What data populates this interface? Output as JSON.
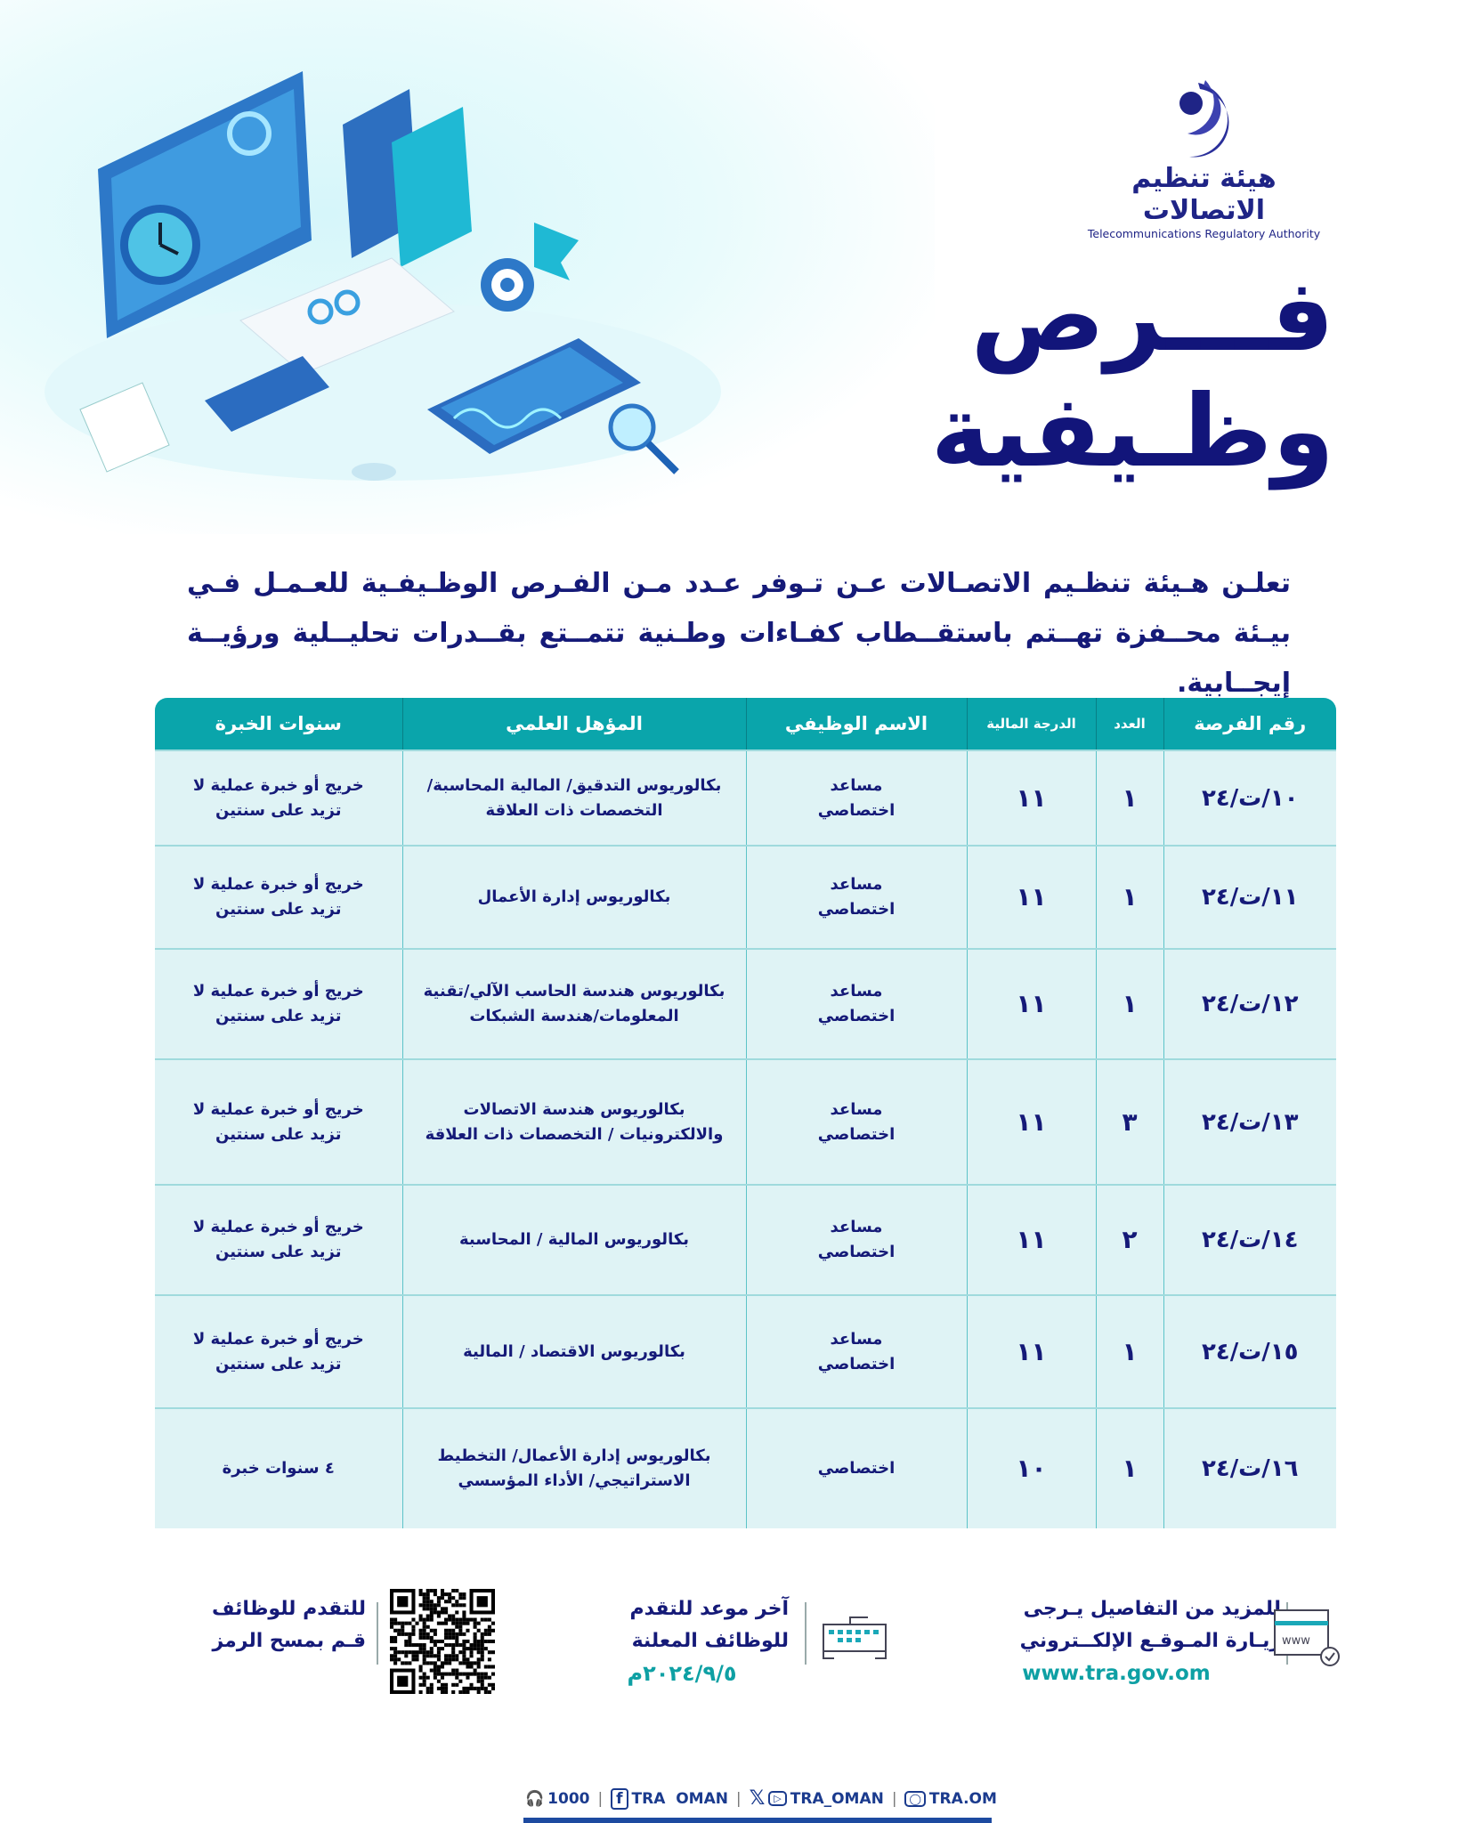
{
  "logo": {
    "arabic": "هيئة تنظيم الاتصالات",
    "english": "Telecommunications Regulatory Authority"
  },
  "title": {
    "line1": "فـــرص",
    "line2": "وظـيفية"
  },
  "intro": "تعلـن هـيئة تنظـيم الاتصـالات عـن تـوفر عـدد مـن الفـرص الوظـيفـية للعـمـل فـي بيـئة محــفزة تهــتم باستقــطاب كفـاءات وطـنية تتمــتع بقــدرات تحليــلية ورؤيــة إيجــابية.",
  "table": {
    "headers": [
      "رقم الفرصة",
      "العدد",
      "الدرجة المالية",
      "الاسم الوظيفي",
      "المؤهل العلمي",
      "سنوات الخبرة"
    ],
    "rows": [
      {
        "id": "١٠/ت/٢٤",
        "count": "١",
        "grade": "١١",
        "title": "مساعد اختصاصي",
        "qualification": "بكالوريوس التدقيق/ المالية المحاسبة/ التخصصات ذات العلاقة",
        "experience": "خريج أو خبرة عملية لا تزيد على سنتين"
      },
      {
        "id": "١١/ت/٢٤",
        "count": "١",
        "grade": "١١",
        "title": "مساعد اختصاصي",
        "qualification": "بكالوريوس إدارة الأعمال",
        "experience": "خريج أو خبرة عملية لا تزيد على سنتين"
      },
      {
        "id": "١٢/ت/٢٤",
        "count": "١",
        "grade": "١١",
        "title": "مساعد اختصاصي",
        "qualification": "بكالوريوس هندسة الحاسب الآلي/تقنية المعلومات/هندسة الشبكات",
        "experience": "خريج أو خبرة عملية لا تزيد على سنتين"
      },
      {
        "id": "١٣/ت/٢٤",
        "count": "٣",
        "grade": "١١",
        "title": "مساعد اختصاصي",
        "qualification": "بكالوريوس هندسة الاتصالات والالكترونيات / التخصصات ذات العلاقة",
        "experience": "خريج أو خبرة عملية لا تزيد على سنتين"
      },
      {
        "id": "١٤/ت/٢٤",
        "count": "٢",
        "grade": "١١",
        "title": "مساعد اختصاصي",
        "qualification": "بكالوريوس المالية / المحاسبة",
        "experience": "خريج أو خبرة عملية لا تزيد على سنتين"
      },
      {
        "id": "١٥/ت/٢٤",
        "count": "١",
        "grade": "١١",
        "title": "مساعد اختصاصي",
        "qualification": "بكالوريوس الاقتصاد / المالية",
        "experience": "خريج أو خبرة عملية لا تزيد على سنتين"
      },
      {
        "id": "١٦/ت/٢٤",
        "count": "١",
        "grade": "١٠",
        "title": "اختصاصي",
        "qualification": "بكالوريوس إدارة الأعمال/ التخطيط الاستراتيجي/ الأداء المؤسسي",
        "experience": "٤ سنوات خبرة"
      }
    ]
  },
  "footer": {
    "website": {
      "line1": "للمزيد من التفاصيل يـرجى",
      "line2": "زيـارة المـوقـع الإلكــتروني",
      "url": "www.tra.gov.om",
      "icon": "www-browser-icon"
    },
    "deadline": {
      "line1": "آخر موعد للتقدم",
      "line2": "للوظائف المعلنة",
      "date": "٢٠٢٤/٩/٥م",
      "icon": "keyboard-hands-icon"
    },
    "qr": {
      "line1": "للتقدم للوظائف",
      "line2": "قـم بمسح الرمز",
      "icon": "qr-code"
    }
  },
  "social": {
    "phone": "1000",
    "facebook": "TRA  OMAN",
    "youtube": "TRA_OMAN",
    "instagram": "TRA.OM"
  },
  "colors": {
    "navy": "#151a78",
    "teal": "#0aa5ab",
    "row": "#dff3f5",
    "bar": "#1d4aa0"
  }
}
